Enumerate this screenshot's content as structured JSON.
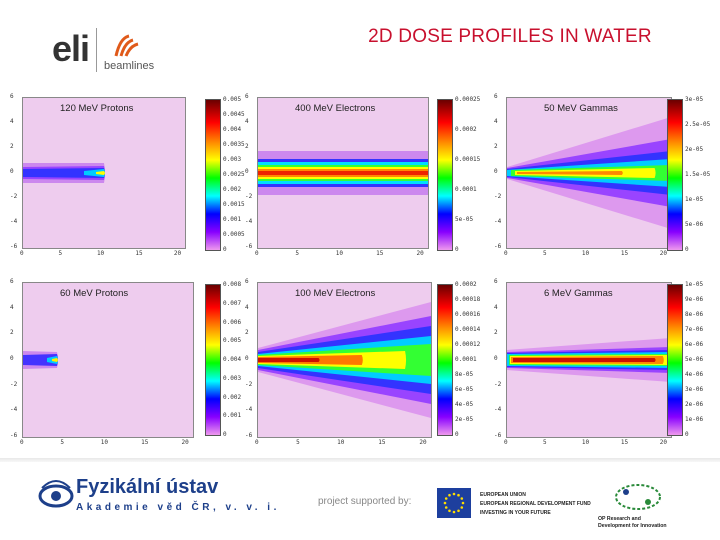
{
  "header": {
    "title": "2D DOSE PROFILES IN WATER",
    "logo_text": "eli",
    "logo_sub": "beamlines"
  },
  "panels": [
    {
      "title": "120 MeV Protons",
      "colorbar_labels": [
        "0.005",
        "0.0045",
        "0.004",
        "0.0035",
        "0.003",
        "0.0025",
        "0.002",
        "0.0015",
        "0.001",
        "0.0005",
        "0"
      ],
      "ytick_labels": [
        "6",
        "4",
        "2",
        "0",
        "-2",
        "-4",
        "-6"
      ],
      "xtick_labels": [
        "0",
        "5",
        "10",
        "15",
        "20"
      ]
    },
    {
      "title": "400 MeV Electrons",
      "colorbar_labels": [
        "0.00025",
        "0.0002",
        "0.00015",
        "0.0001",
        "5e-05",
        "0"
      ],
      "ytick_labels": [
        "6",
        "4",
        "2",
        "0",
        "-2",
        "-4",
        "-6"
      ],
      "xtick_labels": [
        "0",
        "5",
        "10",
        "15",
        "20"
      ]
    },
    {
      "title": "50 MeV Gammas",
      "colorbar_labels": [
        "3e-05",
        "2.5e-05",
        "2e-05",
        "1.5e-05",
        "1e-05",
        "5e-06",
        "0"
      ],
      "ytick_labels": [
        "6",
        "4",
        "2",
        "0",
        "-2",
        "-4",
        "-6"
      ],
      "xtick_labels": [
        "0",
        "5",
        "10",
        "15",
        "20"
      ]
    },
    {
      "title": "60 MeV Protons",
      "colorbar_labels": [
        "0.008",
        "0.007",
        "0.006",
        "0.005",
        "0.004",
        "0.003",
        "0.002",
        "0.001",
        "0"
      ],
      "ytick_labels": [
        "6",
        "4",
        "2",
        "0",
        "-2",
        "-4",
        "-6"
      ],
      "xtick_labels": [
        "0",
        "5",
        "10",
        "15",
        "20"
      ]
    },
    {
      "title": "100 MeV Electrons",
      "colorbar_labels": [
        "0.0002",
        "0.00018",
        "0.00016",
        "0.00014",
        "0.00012",
        "0.0001",
        "8e-05",
        "6e-05",
        "4e-05",
        "2e-05",
        "0"
      ],
      "ytick_labels": [
        "6",
        "4",
        "2",
        "0",
        "-2",
        "-4",
        "-6"
      ],
      "xtick_labels": [
        "0",
        "5",
        "10",
        "15",
        "20"
      ]
    },
    {
      "title": "6 MeV Gammas",
      "colorbar_labels": [
        "1e-05",
        "9e-06",
        "8e-06",
        "7e-06",
        "6e-06",
        "5e-06",
        "4e-06",
        "3e-06",
        "2e-06",
        "1e-06",
        "0"
      ],
      "ytick_labels": [
        "6",
        "4",
        "2",
        "0",
        "-2",
        "-4",
        "-6"
      ],
      "xtick_labels": [
        "0",
        "5",
        "10",
        "15",
        "20"
      ]
    }
  ],
  "footer": {
    "institute_name": "Fyzikální ústav",
    "institute_sub": "Akademie věd ČR, v. v. i.",
    "supported_by": "project supported by:",
    "eu_lines": [
      "EUROPEAN UNION",
      "EUROPEAN REGIONAL DEVELOPMENT FUND",
      "INVESTING IN YOUR FUTURE"
    ],
    "op_lines": [
      "OP Research and",
      "Development for Innovation"
    ]
  }
}
